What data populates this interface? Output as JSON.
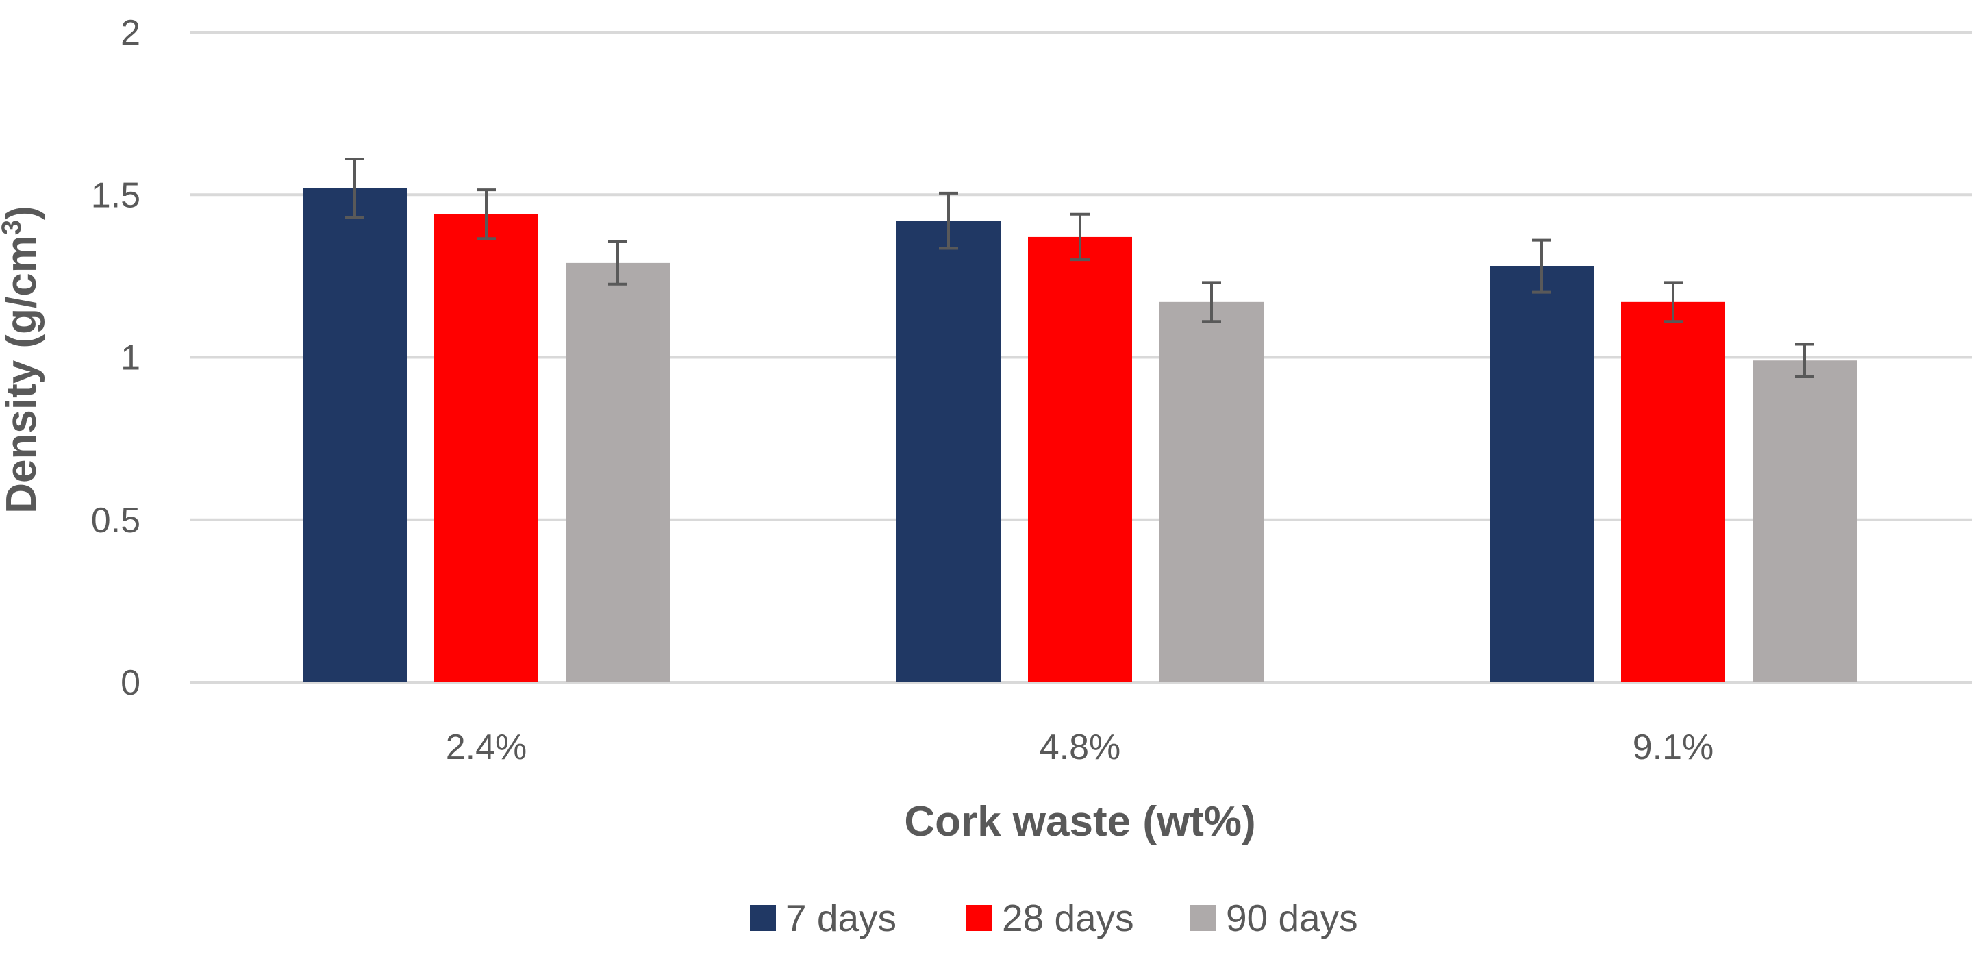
{
  "chart_data": {
    "type": "bar",
    "title": "",
    "xlabel": "Cork waste (wt%)",
    "ylabel_main": "Density (g/cm",
    "ylabel_sup": "3",
    "ylabel_close": ")",
    "ylim": [
      0,
      2
    ],
    "yticks": [
      0,
      0.5,
      1,
      1.5,
      2
    ],
    "ytick_labels": [
      "0",
      "0.5",
      "1",
      "1.5",
      "2"
    ],
    "grid": true,
    "legend_position": "bottom",
    "categories": [
      "2.4%",
      "4.8%",
      "9.1%"
    ],
    "series": [
      {
        "name": "7 days",
        "color": "#203864",
        "values": [
          1.52,
          1.42,
          1.28
        ],
        "errors": [
          0.09,
          0.085,
          0.08
        ]
      },
      {
        "name": "28 days",
        "color": "#ff0000",
        "values": [
          1.44,
          1.37,
          1.17
        ],
        "errors": [
          0.075,
          0.07,
          0.06
        ]
      },
      {
        "name": "90 days",
        "color": "#aeaaaa",
        "values": [
          1.29,
          1.17,
          0.99
        ],
        "errors": [
          0.065,
          0.06,
          0.05
        ]
      }
    ],
    "gridline_color": "#d9d9d9",
    "error_bar_color": "#595959"
  }
}
